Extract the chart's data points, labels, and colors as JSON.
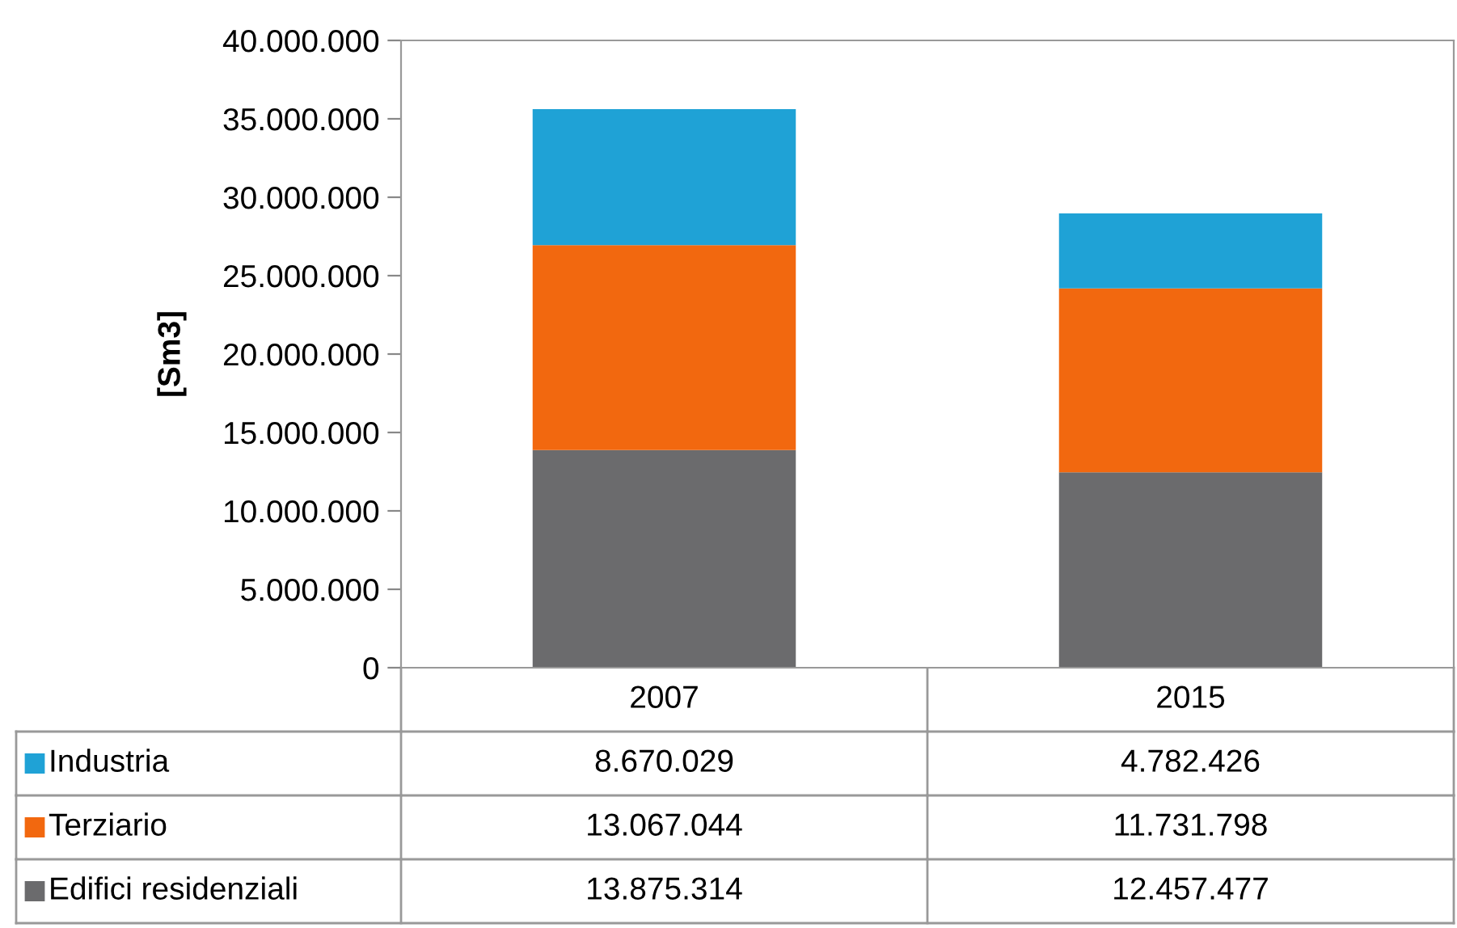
{
  "chart_data": {
    "type": "bar",
    "stacked": true,
    "ylabel": "[Sm3]",
    "categories": [
      "2007",
      "2015"
    ],
    "series": [
      {
        "name": "Edifici residenziali",
        "color": "#6b6b6d",
        "values": [
          13875314,
          12457477
        ],
        "value_labels": [
          "13.875.314",
          "12.457.477"
        ]
      },
      {
        "name": "Terziario",
        "color": "#f2680f",
        "values": [
          13067044,
          11731798
        ],
        "value_labels": [
          "13.067.044",
          "11.731.798"
        ]
      },
      {
        "name": "Industria",
        "color": "#1fa2d6",
        "values": [
          8670029,
          4782426
        ],
        "value_labels": [
          "8.670.029",
          "4.782.426"
        ]
      }
    ],
    "ylim": [
      0,
      40000000
    ],
    "yticks": [
      0,
      {
        "value": 5000000,
        "label": "5.000.000"
      },
      {
        "value": 10000000,
        "label": "10.000.000"
      },
      {
        "value": 15000000,
        "label": "15.000.000"
      },
      {
        "value": 20000000,
        "label": "20.000.000"
      },
      {
        "value": 25000000,
        "label": "25.000.000"
      },
      {
        "value": 30000000,
        "label": "30.000.000"
      },
      {
        "value": 35000000,
        "label": "35.000.000"
      },
      {
        "value": 40000000,
        "label": "40.000.000"
      }
    ],
    "grid": false,
    "legend": "bottom"
  }
}
